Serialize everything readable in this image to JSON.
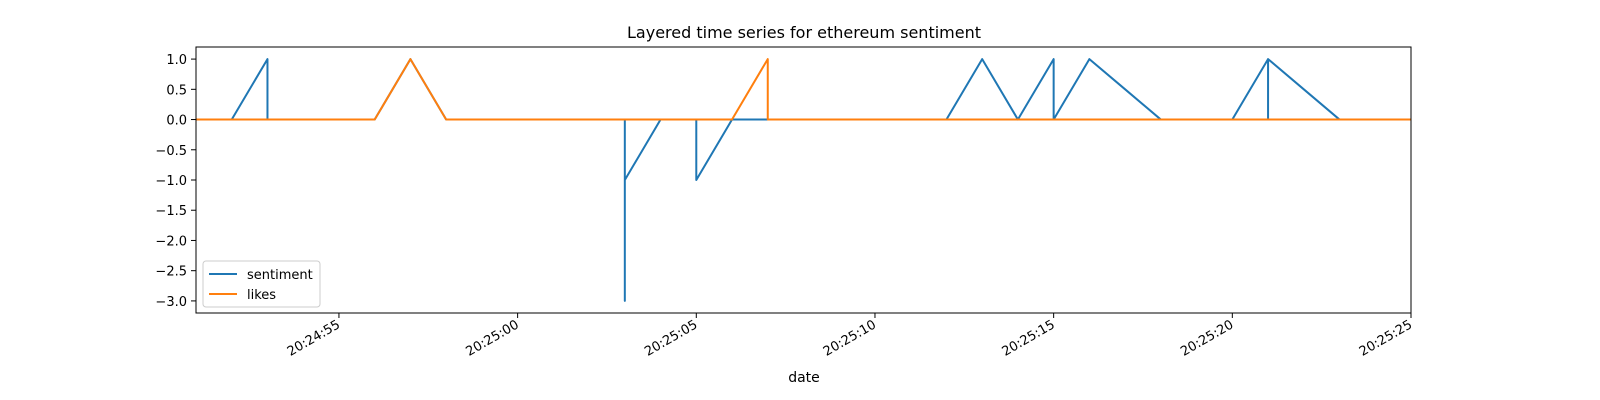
{
  "chart_data": {
    "type": "line",
    "title": "Layered time series for ethereum sentiment",
    "xlabel": "date",
    "ylabel": "",
    "x_unit": "time",
    "xlim": [
      "20:24:51",
      "20:25:25"
    ],
    "ylim": [
      -3.2,
      1.2
    ],
    "x_ticks": [
      "20:24:55",
      "20:25:00",
      "20:25:05",
      "20:25:10",
      "20:25:15",
      "20:25:20",
      "20:25:25"
    ],
    "y_ticks": [
      1.0,
      0.5,
      0.0,
      -0.5,
      -1.0,
      -1.5,
      -2.0,
      -2.5,
      -3.0
    ],
    "y_tick_labels": [
      "1.0",
      "0.5",
      "0.0",
      "−0.5",
      "−1.0",
      "−1.5",
      "−2.0",
      "−2.5",
      "−3.0"
    ],
    "grid": false,
    "legend_position": "lower-left",
    "series": [
      {
        "name": "sentiment",
        "color": "#1f77b4",
        "points": [
          [
            "20:24:51",
            0
          ],
          [
            "20:24:52",
            0
          ],
          [
            "20:24:53",
            1
          ],
          [
            "20:24:53",
            0
          ],
          [
            "20:24:54",
            0
          ],
          [
            "20:24:55",
            0
          ],
          [
            "20:24:56",
            0
          ],
          [
            "20:24:57",
            1
          ],
          [
            "20:24:58",
            0
          ],
          [
            "20:24:59",
            0
          ],
          [
            "20:25:00",
            0
          ],
          [
            "20:25:01",
            0
          ],
          [
            "20:25:02",
            0
          ],
          [
            "20:25:03",
            0
          ],
          [
            "20:25:03",
            -3
          ],
          [
            "20:25:03",
            -1
          ],
          [
            "20:25:04",
            0
          ],
          [
            "20:25:05",
            0
          ],
          [
            "20:25:05",
            -1
          ],
          [
            "20:25:06",
            0
          ],
          [
            "20:25:07",
            0
          ],
          [
            "20:25:08",
            0
          ],
          [
            "20:25:09",
            0
          ],
          [
            "20:25:10",
            0
          ],
          [
            "20:25:11",
            0
          ],
          [
            "20:25:12",
            0
          ],
          [
            "20:25:13",
            1
          ],
          [
            "20:25:14",
            0
          ],
          [
            "20:25:15",
            1
          ],
          [
            "20:25:15",
            0
          ],
          [
            "20:25:16",
            1
          ],
          [
            "20:25:17",
            0.5
          ],
          [
            "20:25:18",
            0
          ],
          [
            "20:25:19",
            0
          ],
          [
            "20:25:20",
            0
          ],
          [
            "20:25:21",
            1
          ],
          [
            "20:25:21",
            0
          ],
          [
            "20:25:21",
            1
          ],
          [
            "20:25:22",
            0.5
          ],
          [
            "20:25:23",
            0
          ],
          [
            "20:25:24",
            0
          ],
          [
            "20:25:25",
            0
          ]
        ]
      },
      {
        "name": "likes",
        "color": "#ff7f0e",
        "points": [
          [
            "20:24:51",
            0
          ],
          [
            "20:24:56",
            0
          ],
          [
            "20:24:57",
            1
          ],
          [
            "20:24:58",
            0
          ],
          [
            "20:25:06",
            0
          ],
          [
            "20:25:07",
            1
          ],
          [
            "20:25:07",
            0
          ],
          [
            "20:25:25",
            0
          ]
        ]
      }
    ]
  }
}
